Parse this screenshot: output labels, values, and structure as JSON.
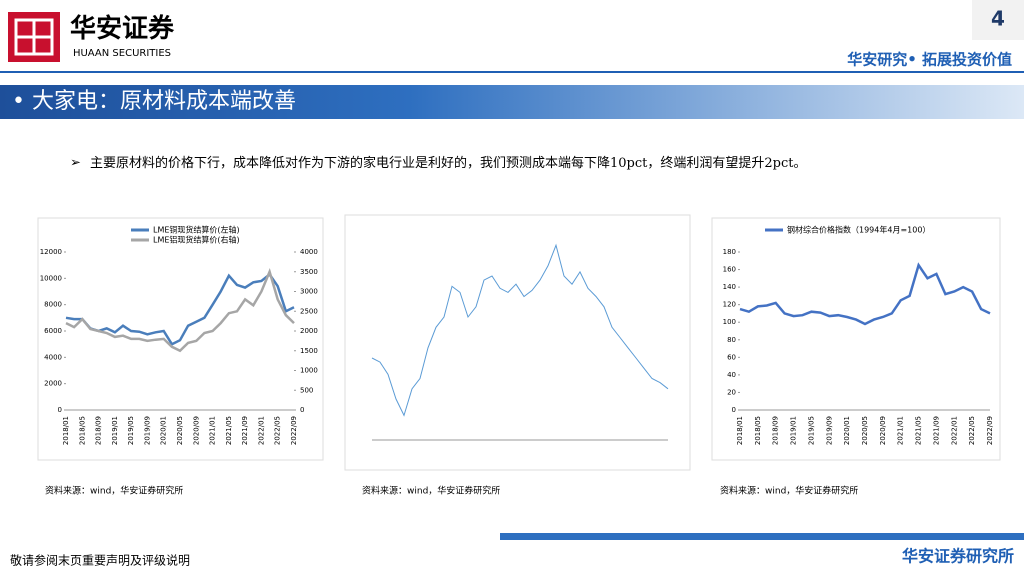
{
  "header": {
    "logo_cn": "华安证券",
    "logo_en": "HUAAN SECURITIES",
    "page": "4",
    "slogan": "华安研究• 拓展投资价值"
  },
  "title": "• 大家电：原材料成本端改善",
  "body": {
    "bullet": "主要原材料的价格下行，成本降低对作为下游的家电行业是利好的，我们预测成本端每下降10pct，终端利润有望提升2pct。"
  },
  "chart_data": [
    {
      "type": "line",
      "categories": [
        "2018/01",
        null,
        "2018/05",
        null,
        "2018/09",
        null,
        "2019/01",
        null,
        "2019/05",
        null,
        "2019/09",
        null,
        "2020/01",
        null,
        "2020/05",
        null,
        "2020/09",
        null,
        "2021/01",
        null,
        "2021/05",
        null,
        "2021/09",
        null,
        "2022/01",
        null,
        "2022/05",
        null,
        "2022/09"
      ],
      "series": [
        {
          "name": "LME铜现货结算价(左轴)",
          "color": "#4a7ebb",
          "values": [
            7000,
            6900,
            6900,
            6200,
            6000,
            6200,
            5900,
            6400,
            6000,
            5950,
            5750,
            5900,
            6000,
            5000,
            5300,
            6400,
            6700,
            7000,
            8000,
            9000,
            10200,
            9500,
            9300,
            9700,
            9800,
            10300,
            9400,
            7500,
            7800
          ]
        },
        {
          "name": "LME铝现货结算价(右轴)",
          "color": "#a6a6a6",
          "axis": "y2",
          "values": [
            2200,
            2100,
            2300,
            2050,
            2000,
            1950,
            1850,
            1880,
            1800,
            1800,
            1750,
            1780,
            1800,
            1600,
            1500,
            1700,
            1750,
            1950,
            2000,
            2200,
            2450,
            2500,
            2800,
            2650,
            3000,
            3500,
            2800,
            2400,
            2200
          ]
        }
      ],
      "ylim": [
        0,
        12000
      ],
      "yticks": [
        0,
        2000,
        4000,
        6000,
        8000,
        10000,
        12000
      ],
      "y2lim": [
        0,
        4000
      ],
      "y2ticks": [
        0,
        500,
        1000,
        1500,
        2000,
        2500,
        3000,
        3500,
        4000
      ]
    },
    {
      "type": "line",
      "series": [
        {
          "color": "#5b9bd5",
          "values": [
            40,
            38,
            32,
            20,
            12,
            25,
            30,
            45,
            55,
            60,
            75,
            72,
            60,
            65,
            78,
            80,
            74,
            72,
            76,
            70,
            73,
            78,
            85,
            95,
            80,
            76,
            82,
            74,
            70,
            65,
            55,
            50,
            45,
            40,
            35,
            30,
            28,
            25
          ]
        }
      ],
      "ylim": [
        0,
        100
      ]
    },
    {
      "type": "line",
      "categories": [
        "2018/01",
        null,
        "2018/05",
        null,
        "2018/09",
        null,
        "2019/01",
        null,
        "2019/05",
        null,
        "2019/09",
        null,
        "2020/01",
        null,
        "2020/05",
        null,
        "2020/09",
        null,
        "2021/01",
        null,
        "2021/05",
        null,
        "2021/09",
        null,
        "2022/01",
        null,
        "2022/05",
        null,
        "2022/09"
      ],
      "series": [
        {
          "name": "钢材综合价格指数（1994年4月=100）",
          "color": "#4472c4",
          "values": [
            115,
            112,
            118,
            119,
            122,
            110,
            107,
            108,
            112,
            111,
            107,
            108,
            106,
            103,
            98,
            103,
            106,
            110,
            125,
            130,
            165,
            150,
            155,
            132,
            135,
            140,
            135,
            115,
            110
          ]
        }
      ],
      "ylim": [
        0,
        180
      ],
      "yticks": [
        0,
        20,
        40,
        60,
        80,
        100,
        120,
        140,
        160,
        180
      ]
    }
  ],
  "sources": [
    "资料来源：wind，华安证券研究所",
    "资料来源：wind，华安证券研究所",
    "资料来源：wind，华安证券研究所"
  ],
  "footer": {
    "disclaimer": "敬请参阅末页重要声明及评级说明",
    "org": "华安证券研究所"
  }
}
